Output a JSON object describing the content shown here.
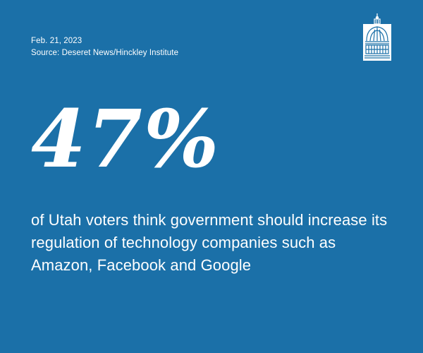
{
  "date": "Feb. 21, 2023",
  "source": "Source: Deseret News/Hinckley Institute",
  "logo_icon": "capitol-dome-icon",
  "stat": "47%",
  "caption": "of Utah voters think government should increase its regulation of technology companies such as Amazon, Facebook and Google",
  "colors": {
    "background": "#1b70a8",
    "text": "#ffffff"
  }
}
